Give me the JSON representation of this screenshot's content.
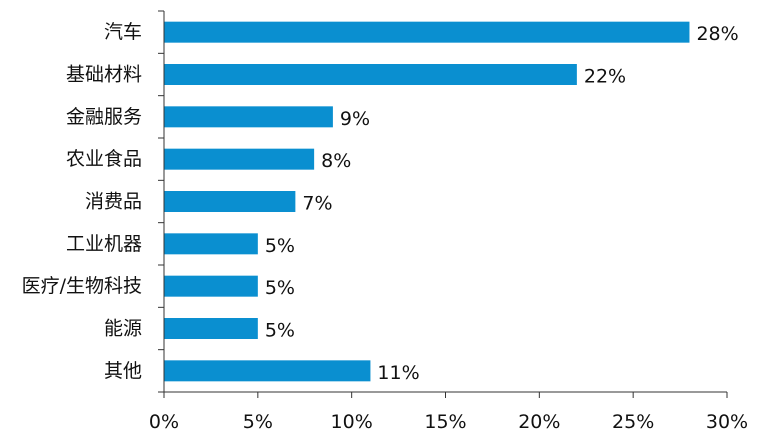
{
  "chart_data": {
    "type": "bar",
    "orientation": "horizontal",
    "title": "",
    "xlabel": "",
    "ylabel": "",
    "categories": [
      "汽车",
      "基础材料",
      "金融服务",
      "农业食品",
      "消费品",
      "工业机器",
      "医疗/生物科技",
      "能源",
      "其他"
    ],
    "values": [
      28,
      22,
      9,
      8,
      7,
      5,
      5,
      5,
      11
    ],
    "value_labels": [
      "28%",
      "22%",
      "9%",
      "8%",
      "7%",
      "5%",
      "5%",
      "5%",
      "11%"
    ],
    "xlim": [
      0,
      30
    ],
    "x_ticks": [
      0,
      5,
      10,
      15,
      20,
      25,
      30
    ],
    "x_tick_labels": [
      "0%",
      "5%",
      "10%",
      "15%",
      "20%",
      "25%",
      "30%"
    ],
    "grid": false,
    "legend": "none",
    "bar_color": "#0A8FD0"
  }
}
